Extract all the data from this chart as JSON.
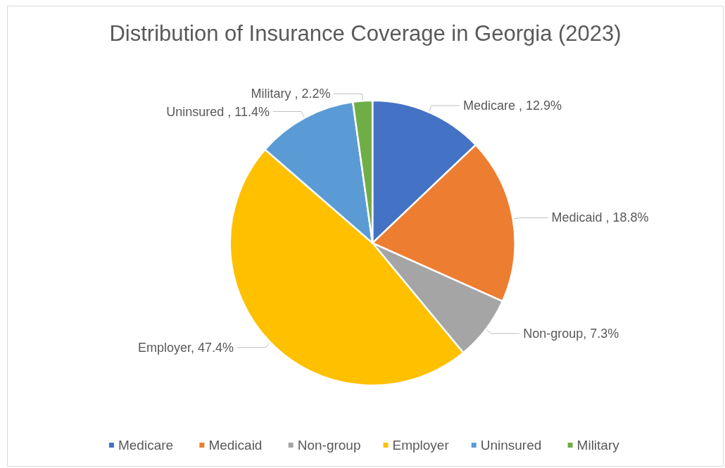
{
  "chart_data": {
    "type": "pie",
    "title": "Distribution of Insurance Coverage in Georgia (2023)",
    "categories": [
      "Medicare ",
      "Medicaid ",
      "Non-group",
      "Employer",
      "Uninsured ",
      "Military "
    ],
    "values": [
      12.9,
      18.8,
      7.3,
      47.4,
      11.4,
      2.2
    ],
    "value_labels": [
      "Medicare , 12.9%",
      "Medicaid , 18.8%",
      "Non-group, 7.3%",
      "Employer, 47.4%",
      "Uninsured , 11.4%",
      "Military , 2.2%"
    ],
    "colors": [
      "#4472c4",
      "#ed7d31",
      "#a5a5a5",
      "#ffc000",
      "#5b9bd5",
      "#70ad47"
    ],
    "legend": "bottom"
  }
}
